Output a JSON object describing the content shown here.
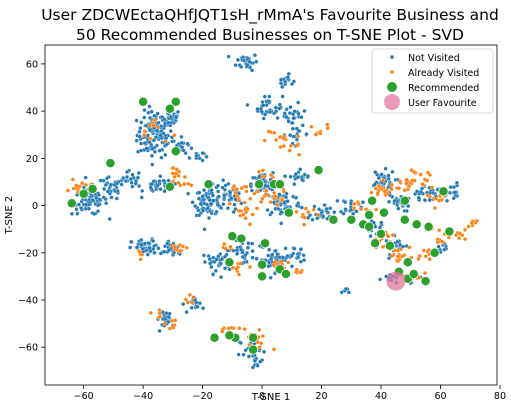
{
  "chart_data": {
    "type": "scatter",
    "title_lines": [
      "User ZDCWEctaQHfJQT1sH_rMmA's Favourite Business and",
      "50 Recommended Businesses on T-SNE Plot - SVD"
    ],
    "xlabel": "T-SNE 1",
    "ylabel": "T-SNE 2",
    "xlim": [
      -73,
      79
    ],
    "ylim": [
      -76,
      68
    ],
    "xticks": [
      -60,
      -40,
      -20,
      0,
      20,
      40,
      60,
      80
    ],
    "yticks": [
      -60,
      -40,
      -20,
      0,
      20,
      40,
      60
    ],
    "grid": false,
    "legend_position": "top-right",
    "colors": {
      "not_visited": "#1f77b4",
      "already_visited": "#ff7f0e",
      "recommended": "#2ca02c",
      "user_favourite": "#e377a0"
    },
    "clusters_note_free": true,
    "series": [
      {
        "name": "Not Visited",
        "marker": "small-dot",
        "color": "#1f77b4",
        "clusters": [
          [
            -36,
            30,
            5,
            8,
            120
          ],
          [
            -31,
            37,
            3,
            3,
            30
          ],
          [
            -5,
            61,
            3,
            3,
            30
          ],
          [
            8,
            53,
            2,
            2,
            15
          ],
          [
            -27,
            25,
            3,
            3,
            20
          ],
          [
            -22,
            21,
            2,
            2,
            10
          ],
          [
            2,
            42,
            4,
            4,
            30
          ],
          [
            10,
            38,
            4,
            4,
            25
          ],
          [
            12,
            30,
            3,
            3,
            15
          ],
          [
            -58,
            2,
            5,
            5,
            80
          ],
          [
            -51,
            7,
            4,
            4,
            30
          ],
          [
            -44,
            11,
            3,
            3,
            20
          ],
          [
            -35,
            8,
            4,
            3,
            30
          ],
          [
            -18,
            2,
            4,
            5,
            70
          ],
          [
            -11,
            4,
            4,
            5,
            40
          ],
          [
            0,
            9,
            3,
            4,
            40
          ],
          [
            7,
            1,
            5,
            5,
            60
          ],
          [
            13,
            12,
            3,
            3,
            20
          ],
          [
            20,
            -3,
            3,
            3,
            25
          ],
          [
            30,
            0,
            3,
            3,
            20
          ],
          [
            40,
            10,
            4,
            4,
            40
          ],
          [
            46,
            1,
            3,
            3,
            25
          ],
          [
            55,
            5,
            3,
            3,
            25
          ],
          [
            63,
            6,
            3,
            3,
            20
          ],
          [
            -39,
            -18,
            4,
            3,
            50
          ],
          [
            -30,
            -18,
            3,
            3,
            30
          ],
          [
            -15,
            -24,
            4,
            4,
            30
          ],
          [
            -7,
            -20,
            4,
            4,
            30
          ],
          [
            4,
            -23,
            4,
            4,
            40
          ],
          [
            11,
            -21,
            3,
            3,
            20
          ],
          [
            -32,
            -48,
            3,
            3,
            25
          ],
          [
            -22,
            -42,
            2,
            3,
            15
          ],
          [
            -4,
            -60,
            3,
            3,
            20
          ],
          [
            -2,
            -66,
            2,
            2,
            10
          ],
          [
            38,
            -10,
            3,
            3,
            15
          ],
          [
            45,
            -17,
            3,
            3,
            20
          ],
          [
            44,
            -31,
            3,
            2,
            15
          ],
          [
            50,
            -30,
            2,
            2,
            10
          ],
          [
            60,
            -18,
            2,
            2,
            10
          ],
          [
            28,
            -36,
            1,
            1,
            5
          ]
        ]
      },
      {
        "name": "Already Visited",
        "marker": "small-dot",
        "color": "#ff7f0e",
        "clusters": [
          [
            -61,
            7,
            4,
            3,
            15
          ],
          [
            -36,
            32,
            4,
            5,
            10
          ],
          [
            -29,
            14,
            2,
            3,
            8
          ],
          [
            -28,
            9,
            3,
            2,
            8
          ],
          [
            -8,
            5,
            4,
            5,
            15
          ],
          [
            -5,
            -2,
            4,
            4,
            12
          ],
          [
            1,
            10,
            3,
            3,
            10
          ],
          [
            6,
            3,
            4,
            4,
            15
          ],
          [
            2,
            5,
            3,
            3,
            8
          ],
          [
            10,
            24,
            4,
            3,
            8
          ],
          [
            3,
            30,
            3,
            3,
            5
          ],
          [
            7,
            28,
            2,
            2,
            5
          ],
          [
            18,
            31,
            4,
            3,
            8
          ],
          [
            15,
            -3,
            4,
            4,
            10
          ],
          [
            33,
            -1,
            3,
            3,
            8
          ],
          [
            40,
            6,
            4,
            3,
            15
          ],
          [
            49,
            9,
            4,
            3,
            20
          ],
          [
            53,
            12,
            3,
            2,
            10
          ],
          [
            58,
            3,
            3,
            3,
            10
          ],
          [
            40,
            -14,
            3,
            3,
            12
          ],
          [
            46,
            -21,
            3,
            3,
            15
          ],
          [
            55,
            -20,
            3,
            3,
            10
          ],
          [
            60,
            -13,
            3,
            3,
            10
          ],
          [
            66,
            -12,
            2,
            2,
            8
          ],
          [
            51,
            -30,
            3,
            2,
            10
          ],
          [
            -28,
            -17,
            3,
            3,
            10
          ],
          [
            -41,
            -21,
            2,
            2,
            5
          ],
          [
            -12,
            -18,
            2,
            2,
            6
          ],
          [
            -8,
            -25,
            3,
            3,
            8
          ],
          [
            5,
            -26,
            3,
            3,
            12
          ],
          [
            11,
            -29,
            2,
            2,
            6
          ],
          [
            -30,
            -50,
            2,
            2,
            6
          ],
          [
            -11,
            -52,
            3,
            2,
            6
          ],
          [
            -3,
            -55,
            3,
            3,
            8
          ],
          [
            -1,
            -59,
            3,
            3,
            8
          ],
          [
            -36,
            -47,
            2,
            2,
            5
          ],
          [
            -25,
            -40,
            2,
            2,
            5
          ],
          [
            -13,
            -54,
            2,
            2,
            4
          ],
          [
            71,
            -8,
            2,
            3,
            6
          ]
        ]
      },
      {
        "name": "Recommended",
        "marker": "large-dot",
        "color": "#2ca02c",
        "points": [
          [
            -64,
            1
          ],
          [
            -60,
            5
          ],
          [
            -57,
            7
          ],
          [
            -51,
            18
          ],
          [
            -31,
            41
          ],
          [
            -29,
            44
          ],
          [
            -29,
            23
          ],
          [
            -31,
            8
          ],
          [
            -40,
            44
          ],
          [
            -1,
            9
          ],
          [
            4,
            9
          ],
          [
            19,
            15
          ],
          [
            24,
            -6
          ],
          [
            30,
            -6
          ],
          [
            34,
            -8
          ],
          [
            36,
            -9
          ],
          [
            36,
            -4
          ],
          [
            41,
            -3
          ],
          [
            43,
            -17
          ],
          [
            49,
            -24
          ],
          [
            49,
            -31
          ],
          [
            51,
            -29
          ],
          [
            55,
            -32
          ],
          [
            56,
            -9
          ],
          [
            61,
            6
          ],
          [
            63,
            -11
          ],
          [
            48,
            -6
          ],
          [
            52,
            -8
          ],
          [
            37,
            2
          ],
          [
            -11,
            -24
          ],
          [
            -10,
            -13
          ],
          [
            1,
            -16
          ],
          [
            9,
            -3
          ],
          [
            0,
            -25
          ],
          [
            0,
            -30
          ],
          [
            6,
            -27
          ],
          [
            8,
            -29
          ],
          [
            6,
            9
          ],
          [
            -3,
            -56
          ],
          [
            -9,
            -56
          ],
          [
            -3,
            -61
          ],
          [
            -16,
            -56
          ],
          [
            -11,
            -55
          ],
          [
            38,
            -16
          ],
          [
            40,
            -12
          ],
          [
            -18,
            9
          ],
          [
            -7,
            -14
          ],
          [
            58,
            -20
          ],
          [
            46,
            -28
          ],
          [
            48,
            2
          ]
        ]
      },
      {
        "name": "User Favourite",
        "marker": "huge-dot",
        "color": "#e377a0",
        "points": [
          [
            45,
            -32
          ]
        ]
      }
    ]
  }
}
